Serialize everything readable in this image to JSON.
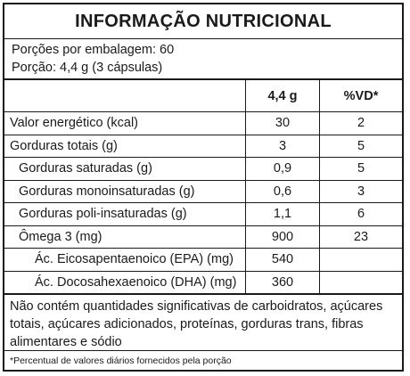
{
  "title": "INFORMAÇÃO NUTRICIONAL",
  "servings_per_package": "Porções por embalagem: 60",
  "serving_size": "Porção: 4,4 g (3 cápsulas)",
  "columns": {
    "name": "",
    "amount": "4,4 g",
    "dv": "%VD*"
  },
  "rows": [
    {
      "name": "Valor energético (kcal)",
      "amount": "30",
      "dv": "2",
      "level": 0
    },
    {
      "name": "Gorduras totais (g)",
      "amount": "3",
      "dv": "5",
      "level": 0
    },
    {
      "name": "Gorduras saturadas (g)",
      "amount": "0,9",
      "dv": "5",
      "level": 1
    },
    {
      "name": "Gorduras monoinsaturadas (g)",
      "amount": "0,6",
      "dv": "3",
      "level": 1
    },
    {
      "name": "Gorduras poli-insaturadas (g)",
      "amount": "1,1",
      "dv": "6",
      "level": 1
    },
    {
      "name": "Ômega 3 (mg)",
      "amount": "900",
      "dv": "23",
      "level": 1
    },
    {
      "name": "Ác. Eicosapentaenoico (EPA) (mg)",
      "amount": "540",
      "dv": "",
      "level": 2
    },
    {
      "name": "Ác. Docosahexaenoico (DHA) (mg)",
      "amount": "360",
      "dv": "",
      "level": 2
    }
  ],
  "note": "Não contém quantidades significativas de carboidratos, açúcares totais, açúcares adicionados, proteínas, gorduras trans, fibras alimentares e sódio",
  "footnote": "*Percentual de valores diários fornecidos pela porção"
}
